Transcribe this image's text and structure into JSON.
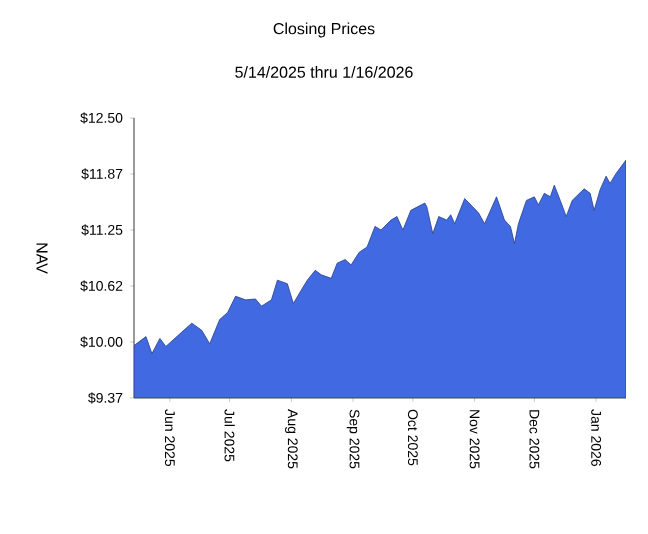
{
  "chart_data": {
    "type": "area",
    "title": "Closing Prices",
    "subtitle": "5/14/2025 thru 1/16/2026",
    "ylabel": "NAV",
    "xlim": [
      "2025-05-14",
      "2026-01-16"
    ],
    "xticks": [
      {
        "value": "2025-06-01",
        "label": "Jun 2025"
      },
      {
        "value": "2025-07-01",
        "label": "Jul 2025"
      },
      {
        "value": "2025-08-01",
        "label": "Aug 2025"
      },
      {
        "value": "2025-09-01",
        "label": "Sep 2025"
      },
      {
        "value": "2025-10-01",
        "label": "Oct 2025"
      },
      {
        "value": "2025-11-01",
        "label": "Nov 2025"
      },
      {
        "value": "2025-12-01",
        "label": "Dec 2025"
      },
      {
        "value": "2026-01-01",
        "label": "Jan 2026"
      }
    ],
    "ylim": [
      9.375,
      12.5
    ],
    "yticks": [
      {
        "value": 9.375,
        "label": "$9.37"
      },
      {
        "value": 10.0,
        "label": "$10.00"
      },
      {
        "value": 10.625,
        "label": "$10.62"
      },
      {
        "value": 11.25,
        "label": "$11.25"
      },
      {
        "value": 11.875,
        "label": "$11.87"
      },
      {
        "value": 12.5,
        "label": "$12.50"
      }
    ],
    "x": [
      "2025-05-14",
      "2025-05-20",
      "2025-05-23",
      "2025-05-27",
      "2025-05-30",
      "2025-06-07",
      "2025-06-12",
      "2025-06-17",
      "2025-06-21",
      "2025-06-26",
      "2025-06-30",
      "2025-07-04",
      "2025-07-09",
      "2025-07-14",
      "2025-07-17",
      "2025-07-22",
      "2025-07-25",
      "2025-07-30",
      "2025-08-02",
      "2025-08-06",
      "2025-08-09",
      "2025-08-13",
      "2025-08-16",
      "2025-08-21",
      "2025-08-24",
      "2025-08-28",
      "2025-08-31",
      "2025-09-04",
      "2025-09-08",
      "2025-09-12",
      "2025-09-15",
      "2025-09-20",
      "2025-09-23",
      "2025-09-26",
      "2025-09-30",
      "2025-10-07",
      "2025-10-08",
      "2025-10-11",
      "2025-10-14",
      "2025-10-18",
      "2025-10-20",
      "2025-10-22",
      "2025-10-27",
      "2025-10-31",
      "2025-11-03",
      "2025-11-06",
      "2025-11-09",
      "2025-11-12",
      "2025-11-16",
      "2025-11-19",
      "2025-11-21",
      "2025-11-23",
      "2025-11-27",
      "2025-12-01",
      "2025-12-03",
      "2025-12-06",
      "2025-12-09",
      "2025-12-11",
      "2025-12-14",
      "2025-12-17",
      "2025-12-20",
      "2025-12-26",
      "2025-12-29",
      "2025-12-31",
      "2026-01-03",
      "2026-01-06",
      "2026-01-08",
      "2026-01-11",
      "2026-01-16"
    ],
    "series": [
      {
        "color": "#4169e1",
        "values": [
          9.96,
          10.06,
          9.87,
          10.04,
          9.95,
          10.11,
          10.21,
          10.13,
          9.98,
          10.25,
          10.33,
          10.51,
          10.47,
          10.48,
          10.4,
          10.47,
          10.69,
          10.65,
          10.43,
          10.58,
          10.69,
          10.8,
          10.75,
          10.71,
          10.88,
          10.92,
          10.86,
          11.0,
          11.06,
          11.29,
          11.25,
          11.36,
          11.4,
          11.25,
          11.47,
          11.55,
          11.51,
          11.21,
          11.4,
          11.36,
          11.42,
          11.32,
          11.6,
          11.51,
          11.44,
          11.32,
          11.47,
          11.62,
          11.36,
          11.29,
          11.1,
          11.32,
          11.58,
          11.62,
          11.53,
          11.66,
          11.62,
          11.75,
          11.58,
          11.4,
          11.58,
          11.71,
          11.66,
          11.47,
          11.7,
          11.85,
          11.77,
          11.88,
          12.03
        ]
      }
    ]
  }
}
